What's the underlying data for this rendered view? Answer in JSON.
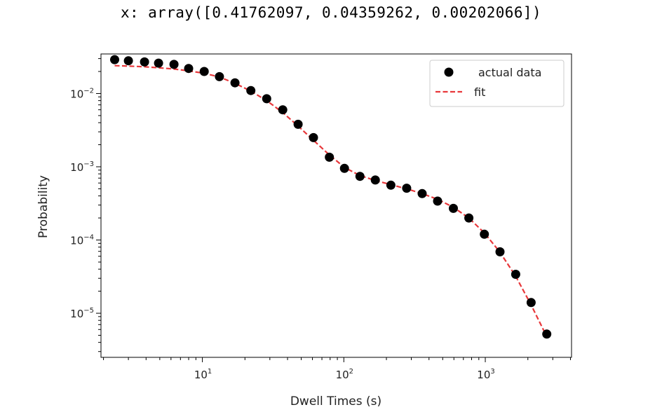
{
  "output": {
    "text": "x: array([0.41762097, 0.04359262, 0.00202066])"
  },
  "chart_data": {
    "type": "scatter",
    "xscale": "log",
    "yscale": "log",
    "xlabel": "Dwell Times (s)",
    "ylabel": "Probability",
    "xlim": [
      1.92,
      4070
    ],
    "ylim": [
      2.5e-06,
      0.0347
    ],
    "x_ticks": [
      {
        "value": 10,
        "base": "10",
        "exp": "1"
      },
      {
        "value": 100,
        "base": "10",
        "exp": "2"
      },
      {
        "value": 1000,
        "base": "10",
        "exp": "3"
      }
    ],
    "y_ticks": [
      {
        "value": 1e-05,
        "base": "10",
        "exp": "−5"
      },
      {
        "value": 0.0001,
        "base": "10",
        "exp": "−4"
      },
      {
        "value": 0.001,
        "base": "10",
        "exp": "−3"
      },
      {
        "value": 0.01,
        "base": "10",
        "exp": "−2"
      }
    ],
    "legend": {
      "placement": "top-right",
      "entries": [
        {
          "label": "actual data",
          "kind": "marker",
          "color": "#000000"
        },
        {
          "label": "fit",
          "kind": "dashed-line",
          "color": "#e8383b"
        }
      ]
    },
    "series": [
      {
        "name": "actual data",
        "style": "marker",
        "color": "#000000",
        "x": [
          2.4,
          3.0,
          3.9,
          4.9,
          6.3,
          8.0,
          10.3,
          13.2,
          17.0,
          22.0,
          28.5,
          37.0,
          47.5,
          61.0,
          79.0,
          101,
          130,
          167,
          215,
          278,
          358,
          460,
          595,
          765,
          985,
          1270,
          1640,
          2110,
          2720
        ],
        "y": [
          0.029,
          0.028,
          0.027,
          0.026,
          0.025,
          0.022,
          0.02,
          0.017,
          0.014,
          0.011,
          0.0085,
          0.006,
          0.0038,
          0.0025,
          0.00135,
          0.00095,
          0.00074,
          0.00066,
          0.00056,
          0.00051,
          0.00043,
          0.00034,
          0.00027,
          0.0002,
          0.00012,
          6.9e-05,
          3.4e-05,
          1.4e-05,
          5.2e-06
        ]
      },
      {
        "name": "fit",
        "style": "dashed-line",
        "color": "#e8383b",
        "x": [
          2.4,
          3.0,
          3.9,
          4.9,
          6.3,
          8.0,
          10.3,
          13.2,
          17.0,
          22.0,
          28.5,
          37.0,
          47.5,
          61.0,
          79.0,
          101,
          130,
          167,
          215,
          278,
          358,
          460,
          595,
          765,
          985,
          1270,
          1640,
          2110,
          2720
        ],
        "y": [
          0.024,
          0.0237,
          0.0232,
          0.0225,
          0.0216,
          0.0204,
          0.0189,
          0.0168,
          0.0138,
          0.0108,
          0.008,
          0.0055,
          0.0036,
          0.0023,
          0.00145,
          0.00098,
          0.00076,
          0.00065,
          0.00057,
          0.0005,
          0.00043,
          0.00036,
          0.00028,
          0.0002,
          0.000125,
          6.8e-05,
          3.2e-05,
          1.3e-05,
          4.8e-06
        ]
      }
    ]
  }
}
